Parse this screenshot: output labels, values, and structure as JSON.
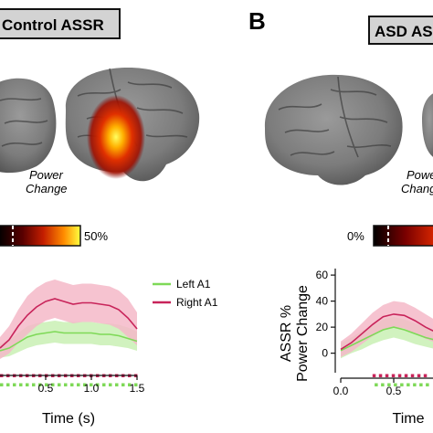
{
  "panel_a": {
    "title": "Control ASSR",
    "colorbar": {
      "title_line1": "Power",
      "title_line2": "Change",
      "max_label": "50%"
    },
    "chart_data": {
      "type": "line",
      "x": [
        0.0,
        0.1,
        0.2,
        0.3,
        0.4,
        0.5,
        0.6,
        0.7,
        0.8,
        0.9,
        1.0,
        1.1,
        1.2,
        1.3,
        1.4,
        1.5
      ],
      "xlim": [
        0,
        1.5
      ],
      "xticks": [
        "0.5",
        "1.0",
        "1.5"
      ],
      "xlabel": "Time (s)",
      "ylabel": "",
      "legend": "right",
      "series": [
        {
          "name": "Left A1",
          "color": "#7ed957",
          "values": [
            4,
            6,
            10,
            14,
            16,
            17,
            18,
            17,
            17,
            17,
            17,
            16,
            16,
            15,
            13,
            11
          ],
          "lower": [
            -1,
            0,
            3,
            6,
            8,
            9,
            10,
            9,
            9,
            9,
            9,
            8,
            8,
            7,
            6,
            4
          ],
          "upper": [
            9,
            12,
            17,
            22,
            24,
            25,
            26,
            25,
            25,
            25,
            25,
            24,
            24,
            23,
            21,
            18
          ]
        },
        {
          "name": "Right A1",
          "color": "#c8245a",
          "values": [
            6,
            12,
            22,
            30,
            36,
            40,
            42,
            40,
            38,
            39,
            39,
            38,
            37,
            34,
            28,
            20
          ],
          "lower": [
            -2,
            2,
            10,
            16,
            22,
            26,
            28,
            26,
            24,
            25,
            25,
            24,
            23,
            20,
            14,
            8
          ],
          "upper": [
            14,
            22,
            34,
            44,
            50,
            54,
            56,
            54,
            52,
            53,
            53,
            52,
            51,
            48,
            42,
            32
          ]
        }
      ],
      "significance_dots": [
        {
          "series": "Right A1",
          "x_start": 0.0,
          "x_end": 1.5
        },
        {
          "series": "Left A1",
          "x_start": 0.0,
          "x_end": 1.5
        }
      ]
    }
  },
  "panel_b": {
    "letter": "B",
    "title": "ASD ASSR",
    "colorbar": {
      "title_line1": "Power",
      "title_line2": "Change",
      "min_label": "0%"
    },
    "chart_data": {
      "type": "line",
      "x": [
        0.0,
        0.1,
        0.2,
        0.3,
        0.4,
        0.5,
        0.6,
        0.7,
        0.8,
        0.9,
        1.0
      ],
      "xlim": [
        0.0,
        1.0
      ],
      "xticks": [
        "0.0",
        "0.5"
      ],
      "ylim": [
        -15,
        65
      ],
      "yticks": [
        "0",
        "20",
        "40",
        "60"
      ],
      "xlabel": "Time",
      "ylabel_line1": "ASSR %",
      "ylabel_line2": "Power Change",
      "series": [
        {
          "name": "Left A1",
          "color": "#7ed957",
          "values": [
            2,
            6,
            10,
            14,
            18,
            20,
            18,
            15,
            12,
            10,
            9
          ],
          "lower": [
            -4,
            0,
            3,
            7,
            10,
            12,
            10,
            7,
            5,
            3,
            2
          ],
          "upper": [
            8,
            12,
            17,
            21,
            26,
            28,
            26,
            23,
            20,
            17,
            16
          ]
        },
        {
          "name": "Right A1",
          "color": "#c8245a",
          "values": [
            3,
            8,
            15,
            22,
            28,
            30,
            29,
            25,
            20,
            16,
            14
          ],
          "lower": [
            -3,
            1,
            7,
            13,
            18,
            20,
            19,
            15,
            11,
            8,
            6
          ],
          "upper": [
            9,
            15,
            23,
            31,
            37,
            40,
            39,
            35,
            30,
            25,
            22
          ]
        }
      ],
      "significance_dots": [
        {
          "series": "Right A1",
          "x_start": 0.3,
          "x_end": 1.0
        },
        {
          "series": "Left A1",
          "x_start": 0.32,
          "x_end": 1.0
        }
      ]
    }
  }
}
